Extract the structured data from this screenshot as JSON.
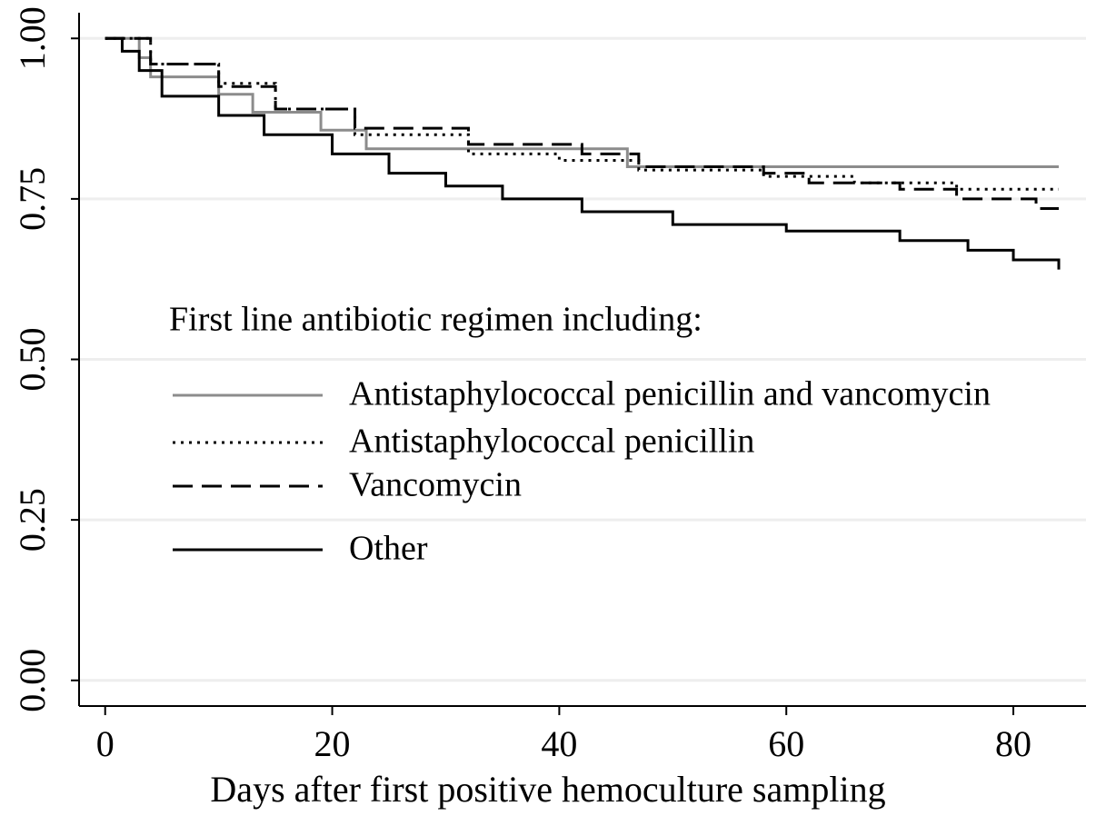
{
  "chart_data": {
    "type": "step",
    "x_label": "Days after first positive hemoculture sampling",
    "legend_title": "First line antibiotic regimen including:",
    "xlim": [
      -2.3,
      86.4
    ],
    "ylim": [
      -0.04,
      1.04
    ],
    "xticks": [
      0,
      20,
      40,
      60,
      80
    ],
    "yticks": [
      {
        "value": 0,
        "label": "0.00"
      },
      {
        "value": 0.25,
        "label": "0.25"
      },
      {
        "value": 0.5,
        "label": "0.50"
      },
      {
        "value": 0.75,
        "label": "0.75"
      },
      {
        "value": 1,
        "label": "1.00"
      }
    ],
    "grid": true,
    "series": [
      {
        "name": "Antistaphylococcal penicillin and vancomycin",
        "color": "#8c8c8c",
        "dash": "solid",
        "x": [
          0,
          3,
          4,
          10,
          13,
          19,
          23,
          46,
          84
        ],
        "values": [
          1,
          0.97,
          0.94,
          0.913,
          0.885,
          0.857,
          0.828,
          0.8,
          0.8
        ]
      },
      {
        "name": "Antistaphylococcal penicillin",
        "color": "#000000",
        "dash": "dotted",
        "x": [
          0,
          4,
          10,
          15,
          22,
          32,
          40,
          47,
          58,
          66,
          75,
          84
        ],
        "values": [
          1,
          0.96,
          0.93,
          0.89,
          0.85,
          0.82,
          0.81,
          0.795,
          0.785,
          0.775,
          0.765,
          0.765
        ]
      },
      {
        "name": "Vancomycin",
        "color": "#000000",
        "dash": "dashed",
        "x": [
          0,
          4,
          10,
          15,
          22,
          32,
          42,
          47,
          58,
          62,
          70,
          75,
          82,
          84
        ],
        "values": [
          1,
          0.96,
          0.925,
          0.89,
          0.86,
          0.835,
          0.82,
          0.8,
          0.79,
          0.775,
          0.765,
          0.75,
          0.735,
          0.735
        ]
      },
      {
        "name": "Other",
        "color": "#000000",
        "dash": "solid",
        "x": [
          0,
          1.5,
          3,
          5,
          10,
          14,
          20,
          25,
          30,
          35,
          42,
          50,
          60,
          70,
          76,
          80,
          84
        ],
        "values": [
          1,
          0.98,
          0.95,
          0.91,
          0.88,
          0.85,
          0.82,
          0.79,
          0.77,
          0.75,
          0.73,
          0.71,
          0.7,
          0.685,
          0.67,
          0.655,
          0.64
        ]
      }
    ]
  }
}
